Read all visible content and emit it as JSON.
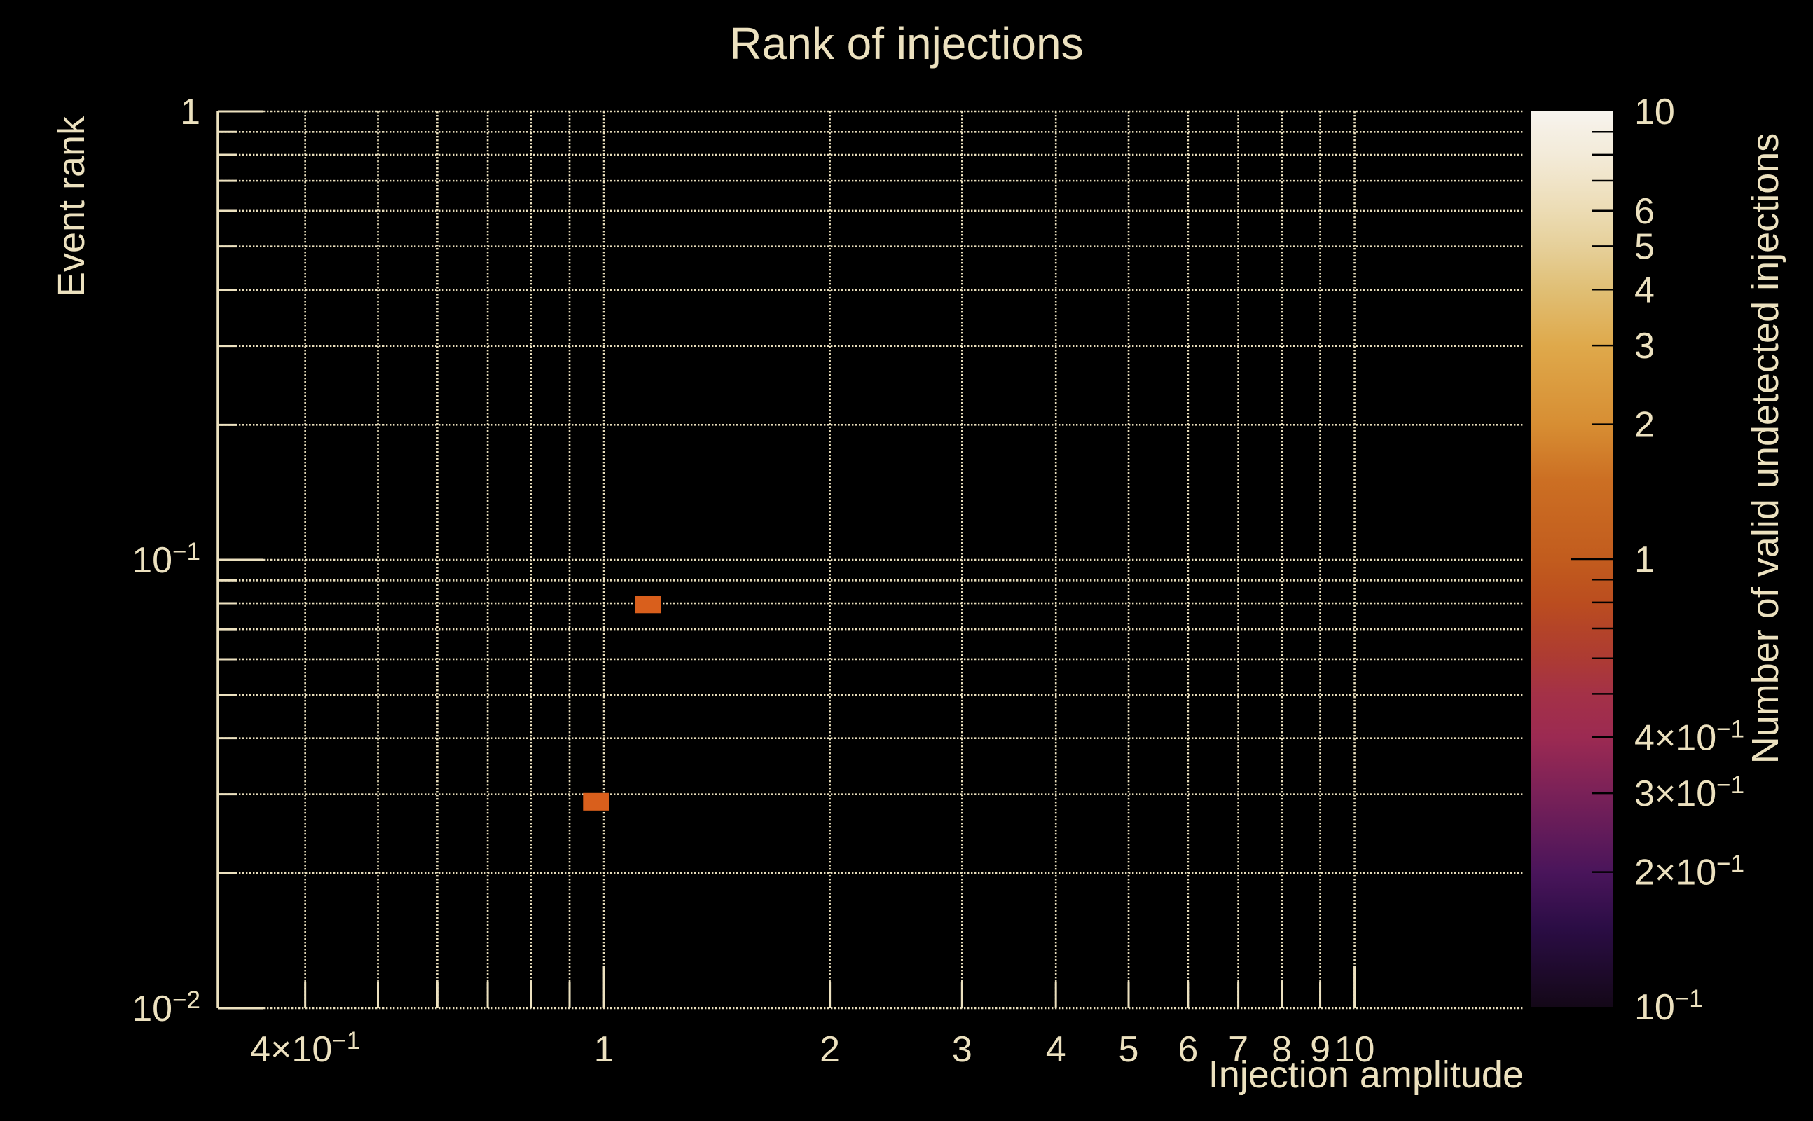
{
  "page": {
    "background": "#000000"
  },
  "chart_data": {
    "type": "heatmap",
    "title": "Rank of injections",
    "xlabel": "Injection amplitude",
    "ylabel": "Event rank",
    "text_color": "#ece1bf",
    "grid_color": "#e9debc",
    "background": "#000000",
    "x_axis": {
      "scale": "log",
      "range": [
        0.306,
        16.8
      ],
      "major_ticks": [
        1,
        10
      ],
      "minor_ticks": [
        0.4,
        0.5,
        0.6,
        0.7,
        0.8,
        0.9,
        2,
        3,
        4,
        5,
        6,
        7,
        8,
        9
      ],
      "tick_labels": [
        {
          "value": 0.4,
          "label": "4×10^−1"
        },
        {
          "value": 1,
          "label": "1"
        },
        {
          "value": 2,
          "label": "2"
        },
        {
          "value": 3,
          "label": "3"
        },
        {
          "value": 4,
          "label": "4"
        },
        {
          "value": 5,
          "label": "5"
        },
        {
          "value": 6,
          "label": "6"
        },
        {
          "value": 7,
          "label": "7"
        },
        {
          "value": 8,
          "label": "8"
        },
        {
          "value": 9,
          "label": "9"
        },
        {
          "value": 10,
          "label": "10"
        }
      ]
    },
    "y_axis": {
      "scale": "log",
      "range": [
        0.01,
        1
      ],
      "major_ticks": [
        1,
        0.1,
        0.01
      ],
      "minor_ticks": [
        0.9,
        0.8,
        0.7,
        0.6,
        0.5,
        0.4,
        0.3,
        0.2,
        0.09,
        0.08,
        0.07,
        0.06,
        0.05,
        0.04,
        0.03,
        0.02
      ],
      "tick_labels": [
        {
          "value": 1,
          "label": "1"
        },
        {
          "value": 0.1,
          "label": "10^−1"
        },
        {
          "value": 0.01,
          "label": "10^−2"
        }
      ]
    },
    "cells": [
      {
        "x_min": 1.1,
        "x_max": 1.19,
        "y_min": 0.076,
        "y_max": 0.083,
        "value": 1,
        "color": "#d95f1c"
      },
      {
        "x_min": 0.938,
        "x_max": 1.016,
        "y_min": 0.0276,
        "y_max": 0.0302,
        "value": 1,
        "color": "#d95f1c"
      }
    ],
    "colorbar": {
      "label": "Number of valid undetected injections",
      "scale": "log",
      "range": [
        0.1,
        10
      ],
      "tick_label_color": "#ece1bf",
      "tick_mark_color": "#000000",
      "tick_labels": [
        {
          "value": 10,
          "label": "10"
        },
        {
          "value": 6,
          "label": "6"
        },
        {
          "value": 5,
          "label": "5"
        },
        {
          "value": 4,
          "label": "4"
        },
        {
          "value": 3,
          "label": "3"
        },
        {
          "value": 2,
          "label": "2"
        },
        {
          "value": 1,
          "label": "1"
        },
        {
          "value": 0.4,
          "label": "4×10^−1"
        },
        {
          "value": 0.3,
          "label": "3×10^−1"
        },
        {
          "value": 0.2,
          "label": "2×10^−1"
        },
        {
          "value": 0.1,
          "label": "10^−1"
        }
      ],
      "major_ticks": [
        1
      ],
      "minor_ticks": [
        9,
        8,
        7,
        6,
        5,
        4,
        3,
        2,
        0.9,
        0.8,
        0.7,
        0.6,
        0.5,
        0.4,
        0.3,
        0.2
      ],
      "gradient": [
        {
          "value": 10,
          "color": "#f7f4ef"
        },
        {
          "value": 9,
          "color": "#f5efe3"
        },
        {
          "value": 8,
          "color": "#f3ebd9"
        },
        {
          "value": 7,
          "color": "#f0e4c8"
        },
        {
          "value": 6,
          "color": "#ecdcb4"
        },
        {
          "value": 5,
          "color": "#e6d09a"
        },
        {
          "value": 4,
          "color": "#e0bf75"
        },
        {
          "value": 3,
          "color": "#dfa94b"
        },
        {
          "value": 2,
          "color": "#d78e33"
        },
        {
          "value": 1.5,
          "color": "#cc6f23"
        },
        {
          "value": 1,
          "color": "#c25c1e"
        },
        {
          "value": 0.8,
          "color": "#bb4d1f"
        },
        {
          "value": 0.7,
          "color": "#b44428"
        },
        {
          "value": 0.6,
          "color": "#ad3b33"
        },
        {
          "value": 0.5,
          "color": "#a43147"
        },
        {
          "value": 0.4,
          "color": "#9c2a52"
        },
        {
          "value": 0.3,
          "color": "#7a2158"
        },
        {
          "value": 0.2,
          "color": "#4a155b"
        },
        {
          "value": 0.15,
          "color": "#2b0d45"
        },
        {
          "value": 0.1,
          "color": "#140818"
        }
      ]
    }
  }
}
